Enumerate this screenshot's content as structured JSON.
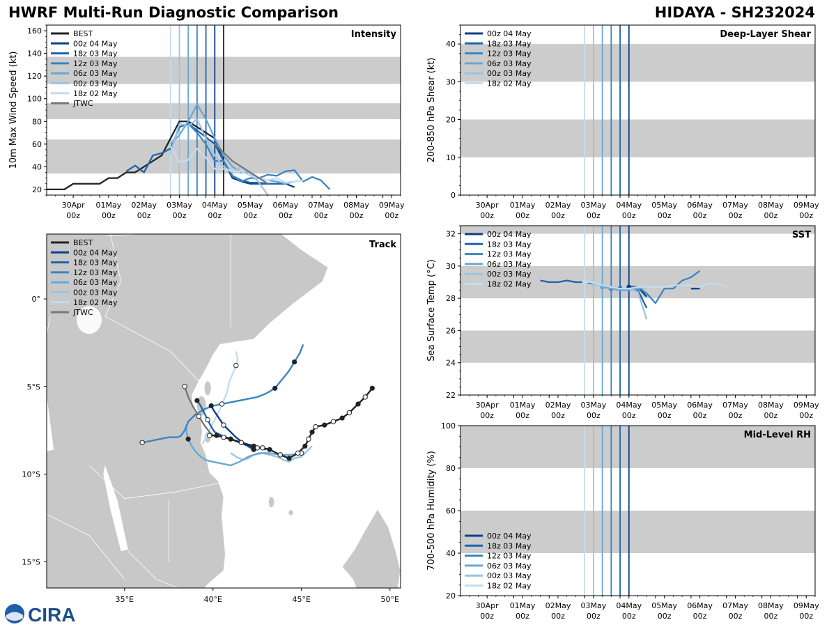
{
  "header": {
    "left_title": "HWRF Multi-Run Diagnostic Comparison",
    "right_title": "HIDAYA - SH232024"
  },
  "logo": {
    "text": "CIRA"
  },
  "runs": [
    {
      "name": "00z 04 May",
      "color": "#0a3d8c"
    },
    {
      "name": "18z 03 May",
      "color": "#1f64ad"
    },
    {
      "name": "12z 03 May",
      "color": "#3a85c2"
    },
    {
      "name": "06z 03 May",
      "color": "#67a7d5"
    },
    {
      "name": "00z 03 May",
      "color": "#99c4e4"
    },
    {
      "name": "18z 02 May",
      "color": "#c4dcf0"
    }
  ],
  "run_times": [
    4.0,
    3.75,
    3.5,
    3.25,
    3.0,
    2.75
  ],
  "best_color": "#222222",
  "jtwc_color": "#777777",
  "band_color": "#cccccc",
  "time_ticks": {
    "pos": [
      0.75,
      1.75,
      2.75,
      3.75,
      4.75,
      5.75,
      6.75,
      7.75,
      8.75
    ],
    "top": [
      "30Apr",
      "01May",
      "02May",
      "03May",
      "04May",
      "05May",
      "06May",
      "07May",
      "08May",
      "09May"
    ],
    "bottom": "00z"
  },
  "chart_data": [
    {
      "type": "line",
      "panel": "Intensity",
      "title": "Intensity",
      "ylabel": "10m Max Wind Speed (kt)",
      "x_units": "days since 00z 30Apr",
      "xlim": [
        -0.75,
        9.25
      ],
      "ylim": [
        15,
        165
      ],
      "yticks": [
        20,
        40,
        60,
        80,
        100,
        120,
        140,
        160
      ],
      "bands": [
        [
          34,
          64
        ],
        [
          82,
          96
        ],
        [
          113,
          137
        ]
      ],
      "legend": [
        "BEST",
        "00z 04 May",
        "18z 03 May",
        "12z 03 May",
        "06z 03 May",
        "00z 03 May",
        "18z 02 May",
        "JTWC"
      ],
      "vlines": [
        {
          "x": 4.25,
          "color": "#222222"
        }
      ],
      "series": [
        {
          "name": "BEST",
          "color": "#222222",
          "x": [
            -0.75,
            -0.25,
            0,
            0.25,
            0.5,
            0.75,
            1,
            1.25,
            1.5,
            1.75,
            2,
            2.25,
            2.5,
            2.75,
            3,
            3.25,
            3.5,
            3.75,
            4,
            4.25
          ],
          "y": [
            20,
            20,
            25,
            25,
            25,
            25,
            30,
            30,
            35,
            35,
            40,
            45,
            50,
            65,
            80,
            80,
            75,
            70,
            65,
            50
          ]
        },
        {
          "name": "00z 04 May",
          "color": "#0a3d8c",
          "x": [
            4,
            4.25,
            4.5,
            4.75,
            5,
            5.25,
            5.5,
            5.75,
            6,
            6.25
          ],
          "y": [
            65,
            45,
            30,
            27,
            25,
            25,
            25,
            25,
            25,
            22
          ]
        },
        {
          "name": "18z 03 May",
          "color": "#1f64ad",
          "x": [
            1.5,
            1.75,
            2,
            2.25,
            2.5,
            2.75,
            3,
            3.25,
            3.5,
            3.75,
            4,
            4.25,
            4.5,
            4.75,
            5,
            5.25,
            5.5,
            5.75,
            6
          ],
          "y": [
            36,
            41,
            35,
            50,
            52,
            56,
            75,
            78,
            72,
            66,
            60,
            45,
            32,
            28,
            26,
            26,
            25,
            25,
            25
          ]
        },
        {
          "name": "12z 03 May",
          "color": "#3a85c2",
          "x": [
            3.25,
            3.5,
            3.75,
            4,
            4.25,
            4.5,
            4.75,
            5,
            5.25,
            5.5,
            5.75,
            6,
            6.25,
            6.5,
            6.75,
            7,
            7.25
          ],
          "y": [
            78,
            70,
            60,
            45,
            45,
            32,
            27,
            30,
            30,
            33,
            32,
            36,
            37,
            27,
            31,
            28,
            20
          ]
        },
        {
          "name": "06z 03 May",
          "color": "#67a7d5",
          "x": [
            2.75,
            3,
            3.25,
            3.5,
            3.75,
            4,
            4.25,
            4.5,
            4.75,
            5,
            5.25,
            5.5,
            5.75,
            6,
            6.25
          ],
          "y": [
            60,
            68,
            80,
            95,
            82,
            65,
            50,
            40,
            35,
            35,
            30,
            28,
            27,
            25,
            27
          ]
        },
        {
          "name": "00z 03 May",
          "color": "#99c4e4",
          "x": [
            2.75,
            3,
            3.25,
            3.5,
            3.75,
            4,
            4.25,
            4.5,
            4.75,
            5,
            5.25,
            5.5
          ],
          "y": [
            52,
            78,
            76,
            82,
            65,
            50,
            40,
            35,
            40,
            34,
            26,
            15
          ]
        },
        {
          "name": "18z 02 May",
          "color": "#c4dcf0",
          "x": [
            2.75,
            3,
            3.25,
            3.5,
            3.75,
            4,
            4.25,
            4.5,
            4.75,
            5,
            5.25,
            5.5,
            5.75,
            6,
            6.25,
            6.5
          ],
          "y": [
            58,
            44,
            46,
            56,
            48,
            38,
            38,
            36,
            36,
            32,
            30,
            28,
            30,
            26,
            27,
            28
          ]
        },
        {
          "name": "JTWC",
          "color": "#777777",
          "x": [
            4,
            4.5,
            5,
            5.5
          ],
          "y": [
            60,
            45,
            35,
            25
          ]
        }
      ]
    },
    {
      "type": "line",
      "panel": "Deep-Layer Shear",
      "title": "Deep-Layer Shear",
      "ylabel": "200-850 hPa Shear (kt)",
      "xlim": [
        -0.75,
        9.25
      ],
      "ylim": [
        0,
        45
      ],
      "yticks": [
        0,
        10,
        20,
        30,
        40
      ],
      "bands": [
        [
          10,
          20
        ],
        [
          30,
          40
        ]
      ],
      "legend": [
        "00z 04 May",
        "18z 03 May",
        "12z 03 May",
        "06z 03 May",
        "00z 03 May",
        "18z 02 May"
      ],
      "series": []
    },
    {
      "type": "line",
      "panel": "SST",
      "title": "SST",
      "ylabel": "Sea Surface Temp (°C)",
      "xlim": [
        -0.75,
        9.25
      ],
      "ylim": [
        22,
        32.5
      ],
      "yticks": [
        22,
        24,
        26,
        28,
        30,
        32
      ],
      "bands": [
        [
          24,
          26
        ],
        [
          28,
          30
        ],
        [
          32,
          34
        ]
      ],
      "legend": [
        "00z 04 May",
        "18z 03 May",
        "12z 03 May",
        "06z 03 May",
        "00z 03 May",
        "18z 02 May"
      ],
      "series": [
        {
          "name": "18z 03 May",
          "color": "#1f64ad",
          "x": [
            1.5,
            1.75,
            2,
            2.25,
            2.5,
            2.75,
            3,
            3.25,
            3.5,
            3.75,
            4,
            4.25,
            4.5
          ],
          "y": [
            29.1,
            29.0,
            29.0,
            29.1,
            29.0,
            29.0,
            28.9,
            28.8,
            28.7,
            28.6,
            28.6,
            28.5,
            27.4
          ],
          "marker_x": 3.75
        },
        {
          "name": "00z 04 May",
          "color": "#0a3d8c",
          "x": [
            4,
            4.25,
            4.5
          ],
          "y": [
            28.7,
            28.7,
            28.1
          ],
          "marker_x": 4
        },
        {
          "name": "00z 04 May",
          "color": "#0a3d8c",
          "x": [
            5.75,
            6
          ],
          "y": [
            28.6,
            28.6
          ],
          "no_marker": true
        },
        {
          "name": "12z 03 May",
          "color": "#3a85c2",
          "x": [
            3.5,
            3.75,
            4,
            4.25,
            4.5,
            4.75,
            5,
            5.25,
            5.5,
            5.75,
            6
          ],
          "y": [
            28.6,
            28.6,
            28.6,
            28.7,
            28.3,
            27.7,
            28.6,
            28.6,
            29.1,
            29.3,
            29.7
          ],
          "marker_x": 3.5
        },
        {
          "name": "06z 03 May",
          "color": "#67a7d5",
          "x": [
            3.25,
            3.5,
            3.75,
            4,
            4.25,
            4.5
          ],
          "y": [
            28.7,
            28.6,
            28.5,
            28.5,
            28.6,
            28.7
          ],
          "marker_x": 3.25
        },
        {
          "name": "00z 03 May",
          "color": "#99c4e4",
          "x": [
            3,
            3.25,
            3.5,
            3.75,
            4,
            4.25,
            4.5
          ],
          "y": [
            28.9,
            28.8,
            28.7,
            28.6,
            28.6,
            28.4,
            26.7
          ],
          "marker_x": 3
        },
        {
          "name": "18z 02 May",
          "color": "#c4dcf0",
          "x": [
            2.75,
            3,
            3.25,
            3.5,
            3.75,
            4,
            4.25,
            4.5,
            4.75,
            5,
            5.25,
            5.5,
            5.75,
            6,
            6.25,
            6.5,
            6.75
          ],
          "y": [
            29.0,
            29.0,
            28.8,
            28.7,
            28.6,
            28.6,
            28.7,
            28.7,
            28.7,
            28.7,
            28.8,
            28.8,
            28.8,
            28.7,
            28.9,
            28.9,
            28.7
          ],
          "marker_x": 2.75
        }
      ]
    },
    {
      "type": "line",
      "panel": "Mid-Level RH",
      "title": "Mid-Level RH",
      "ylabel": "700-500 hPa Humidity (%)",
      "xlim": [
        -0.75,
        9.25
      ],
      "ylim": [
        20,
        100
      ],
      "yticks": [
        20,
        40,
        60,
        80,
        100
      ],
      "bands": [
        [
          40,
          60
        ],
        [
          80,
          100
        ]
      ],
      "legend": [
        "00z 04 May",
        "18z 03 May",
        "12z 03 May",
        "06z 03 May",
        "00z 03 May",
        "18z 02 May"
      ],
      "series": []
    },
    {
      "type": "scatter",
      "panel": "Track",
      "title": "Track",
      "x_units": "longitude °E",
      "y_units": "latitude",
      "xlim": [
        30.6,
        50.6
      ],
      "ylim": [
        -16.5,
        3.7
      ],
      "xticks": [
        35,
        40,
        45,
        50
      ],
      "xtick_labels": [
        "35°E",
        "40°E",
        "45°E",
        "50°E"
      ],
      "yticks": [
        0,
        -5,
        -10,
        -15
      ],
      "ytick_labels": [
        "0°",
        "5°S",
        "10°S",
        "15°S"
      ],
      "legend": [
        "BEST",
        "00z 04 May",
        "18z 03 May",
        "12z 03 May",
        "06z 03 May",
        "00z 03 May",
        "18z 02 May",
        "JTWC"
      ],
      "land_color": "#c8c8c8",
      "ocean_color": "#ffffff",
      "tracks": [
        {
          "name": "BEST",
          "color": "#222222",
          "lon": [
            49.0,
            48.6,
            48.2,
            47.7,
            47.3,
            46.8,
            46.3,
            45.8,
            45.6,
            45.4,
            45.2,
            44.8,
            44.3,
            43.8,
            43.2,
            42.8,
            42.3,
            41.6,
            41.0,
            40.6,
            40.2,
            39.8
          ],
          "lat": [
            -5.1,
            -5.6,
            -6.0,
            -6.5,
            -6.8,
            -7.0,
            -7.2,
            -7.3,
            -7.6,
            -8.0,
            -8.4,
            -8.8,
            -9.1,
            -8.9,
            -8.6,
            -8.5,
            -8.4,
            -8.2,
            -8.0,
            -7.9,
            -7.8,
            -7.8
          ],
          "dots_filled": [
            0,
            2,
            4,
            6,
            8,
            10,
            12,
            14,
            16,
            18,
            20
          ],
          "dots_open": [
            1,
            3,
            5,
            7,
            9,
            11,
            13,
            15,
            17,
            19,
            21
          ]
        },
        {
          "name": "00z 04 May",
          "color": "#0a3d8c",
          "lon": [
            39.9,
            40.0,
            40.2,
            40.4,
            40.6,
            40.9,
            41.3,
            41.8,
            42.3
          ],
          "lat": [
            -6.1,
            -6.3,
            -6.6,
            -6.9,
            -7.2,
            -7.5,
            -7.9,
            -8.3,
            -8.6
          ],
          "dots_filled": [
            0,
            8
          ],
          "dots_open": [
            4
          ]
        },
        {
          "name": "18z 03 May",
          "color": "#1f64ad",
          "lon": [
            39.1,
            39.3,
            39.5,
            39.7,
            39.9,
            40.1,
            40.5,
            41.0,
            41.5,
            42.0,
            42.5,
            43.0
          ],
          "lat": [
            -5.8,
            -6.1,
            -6.5,
            -6.9,
            -7.3,
            -7.6,
            -7.8,
            -8.0,
            -8.2,
            -8.4,
            -8.5,
            -8.6
          ],
          "dots_filled": [
            0,
            7
          ],
          "dots_open": [
            3,
            10
          ]
        },
        {
          "name": "12z 03 May",
          "color": "#3a85c2",
          "lon": [
            45.1,
            44.9,
            44.6,
            44.3,
            43.9,
            43.5,
            43.0,
            42.5,
            42.0,
            41.5,
            41.0,
            40.5,
            40.0,
            39.5,
            39.0,
            38.6,
            38.4,
            38.2,
            38.0,
            37.5,
            37.0,
            36.5,
            36.0
          ],
          "lat": [
            -2.6,
            -3.1,
            -3.6,
            -4.1,
            -4.6,
            -5.1,
            -5.4,
            -5.6,
            -5.7,
            -5.8,
            -5.9,
            -6.0,
            -6.1,
            -6.3,
            -6.6,
            -7.0,
            -7.5,
            -7.8,
            -7.9,
            -7.9,
            -8.0,
            -8.1,
            -8.2
          ],
          "dots_filled": [
            2,
            5
          ],
          "dots_open": [
            11,
            22
          ]
        },
        {
          "name": "06z 03 May",
          "color": "#67a7d5",
          "lon": [
            38.5,
            38.5,
            38.6,
            38.8,
            39.0,
            39.3,
            39.6,
            40.0,
            40.5,
            41.0,
            41.5,
            42.0,
            42.6,
            43.2,
            43.8,
            44.4,
            45.0
          ],
          "lat": [
            -7.2,
            -7.6,
            -8.0,
            -8.4,
            -8.7,
            -9.0,
            -9.2,
            -9.3,
            -9.4,
            -9.5,
            -9.3,
            -9.0,
            -8.8,
            -8.8,
            -8.9,
            -8.9,
            -8.8
          ],
          "dots_filled": [
            2
          ],
          "dots_open": [
            16
          ]
        },
        {
          "name": "00z 03 May",
          "color": "#99c4e4",
          "lon": [
            41.0,
            41.3,
            41.7,
            42.0,
            42.3,
            42.8,
            43.2,
            43.6,
            44.0,
            44.3,
            44.6,
            45.0,
            45.3,
            45.6
          ],
          "lat": [
            -8.8,
            -9.0,
            -9.2,
            -9.1,
            -8.9,
            -8.8,
            -8.9,
            -9.0,
            -9.2,
            -9.3,
            -9.1,
            -9.0,
            -8.7,
            -8.4
          ],
          "dots_filled": [],
          "dots_open": []
        },
        {
          "name": "18z 02 May",
          "color": "#c4dcf0",
          "lon": [
            41.3,
            41.4,
            41.3,
            41.1,
            40.9,
            40.8,
            40.6,
            40.4,
            40.2,
            40.0,
            39.8,
            39.6,
            39.4
          ],
          "lat": [
            -3.0,
            -3.4,
            -3.8,
            -4.3,
            -4.8,
            -5.3,
            -5.8,
            -6.3,
            -6.7,
            -7.1,
            -7.5,
            -7.9,
            -8.3
          ],
          "dots_filled": [],
          "dots_open": [
            2
          ]
        },
        {
          "name": "JTWC",
          "color": "#777777",
          "lon": [
            38.4,
            38.6,
            38.9,
            39.2,
            39.5,
            39.8,
            40.0
          ],
          "lat": [
            -5.0,
            -5.6,
            -6.2,
            -6.7,
            -7.2,
            -7.6,
            -7.8
          ],
          "dots_filled": [],
          "dots_open": [
            0,
            3
          ]
        }
      ]
    }
  ]
}
